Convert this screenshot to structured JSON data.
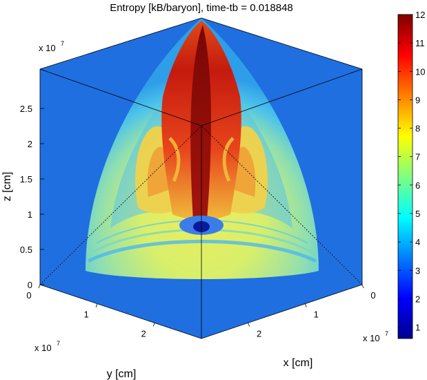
{
  "chart_data": {
    "type": "heatmap",
    "title": "Entropy [kB/baryon], time-tb = 0.018848",
    "xlabel": "x [cm]",
    "ylabel": "y [cm]",
    "zlabel": "z [cm]",
    "axis_exponent": "x 10",
    "axis_exponent_power": "7",
    "x_ticks": [
      "0",
      "1",
      "2"
    ],
    "y_ticks": [
      "0",
      "1",
      "2"
    ],
    "z_ticks": [
      "0",
      "0.5",
      "1",
      "1.5",
      "2",
      "2.5"
    ],
    "colorbar": {
      "min": 0.6,
      "max": 12,
      "ticks": [
        "1",
        "2",
        "3",
        "4",
        "5",
        "6",
        "7",
        "8",
        "9",
        "10",
        "11",
        "12"
      ],
      "colormap": "jet"
    },
    "colors": {
      "background_low": "#1a6fe6",
      "cool": "#3fb4f0",
      "mid": "#8fe0a8",
      "warm": "#f5e85a",
      "hot": "#e8361a",
      "hottest": "#8a0a0a"
    }
  }
}
